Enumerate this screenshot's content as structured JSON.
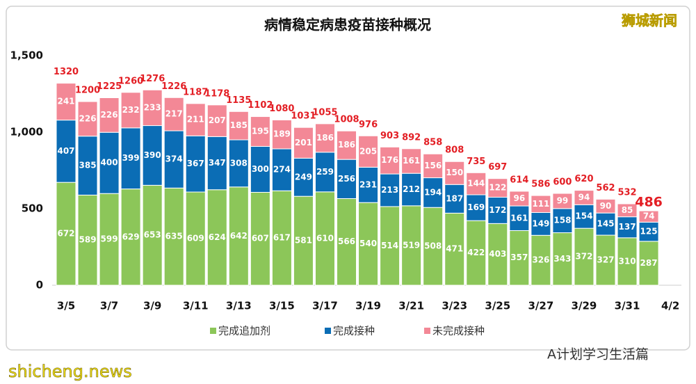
{
  "chart_data": {
    "type": "stacked_bar",
    "title": "病情稳定病患疫苗接种概况",
    "categories": [
      "3/5",
      null,
      "3/7",
      null,
      "3/9",
      null,
      "3/11",
      null,
      "3/13",
      null,
      "3/15",
      null,
      "3/17",
      null,
      "3/19",
      null,
      "3/21",
      null,
      "3/23",
      null,
      "3/25",
      null,
      "3/27",
      null,
      "3/29",
      null,
      "3/31",
      null,
      "4/2"
    ],
    "series": [
      {
        "name": "完成追加剂",
        "color": "#8cc659",
        "values": [
          672,
          589,
          599,
          629,
          653,
          635,
          609,
          624,
          642,
          607,
          617,
          581,
          610,
          566,
          540,
          514,
          519,
          508,
          471,
          422,
          403,
          357,
          326,
          343,
          372,
          327,
          310,
          287,
          null
        ]
      },
      {
        "name": "完成接种",
        "color": "#0b6db5",
        "values": [
          407,
          385,
          400,
          399,
          390,
          374,
          367,
          347,
          308,
          300,
          274,
          249,
          259,
          256,
          231,
          213,
          212,
          194,
          187,
          169,
          172,
          161,
          149,
          158,
          154,
          145,
          137,
          125,
          null
        ]
      },
      {
        "name": "未完成接种",
        "color": "#f38896",
        "values": [
          241,
          226,
          226,
          232,
          233,
          217,
          211,
          207,
          185,
          195,
          189,
          201,
          186,
          186,
          205,
          176,
          161,
          156,
          150,
          144,
          122,
          96,
          111,
          99,
          94,
          90,
          85,
          74,
          null
        ]
      }
    ],
    "totals": [
      1320,
      1200,
      1225,
      1260,
      1276,
      1226,
      1187,
      1178,
      1135,
      1102,
      1080,
      1031,
      1055,
      1008,
      976,
      903,
      892,
      858,
      808,
      735,
      697,
      614,
      586,
      600,
      620,
      562,
      532,
      486,
      null
    ],
    "total_color": "#e31e24",
    "ylim": [
      0,
      1500
    ],
    "yticks": [
      0,
      500,
      {
        "value": 1000,
        "label": "1,000"
      },
      {
        "value": 1500,
        "label": "1,500"
      }
    ],
    "grid": false,
    "legend": "bottom"
  },
  "watermarks": {
    "top": "狮城新闻",
    "bottom_right": "A计划学习生活篇",
    "bottom_left": "shicheng.news"
  }
}
